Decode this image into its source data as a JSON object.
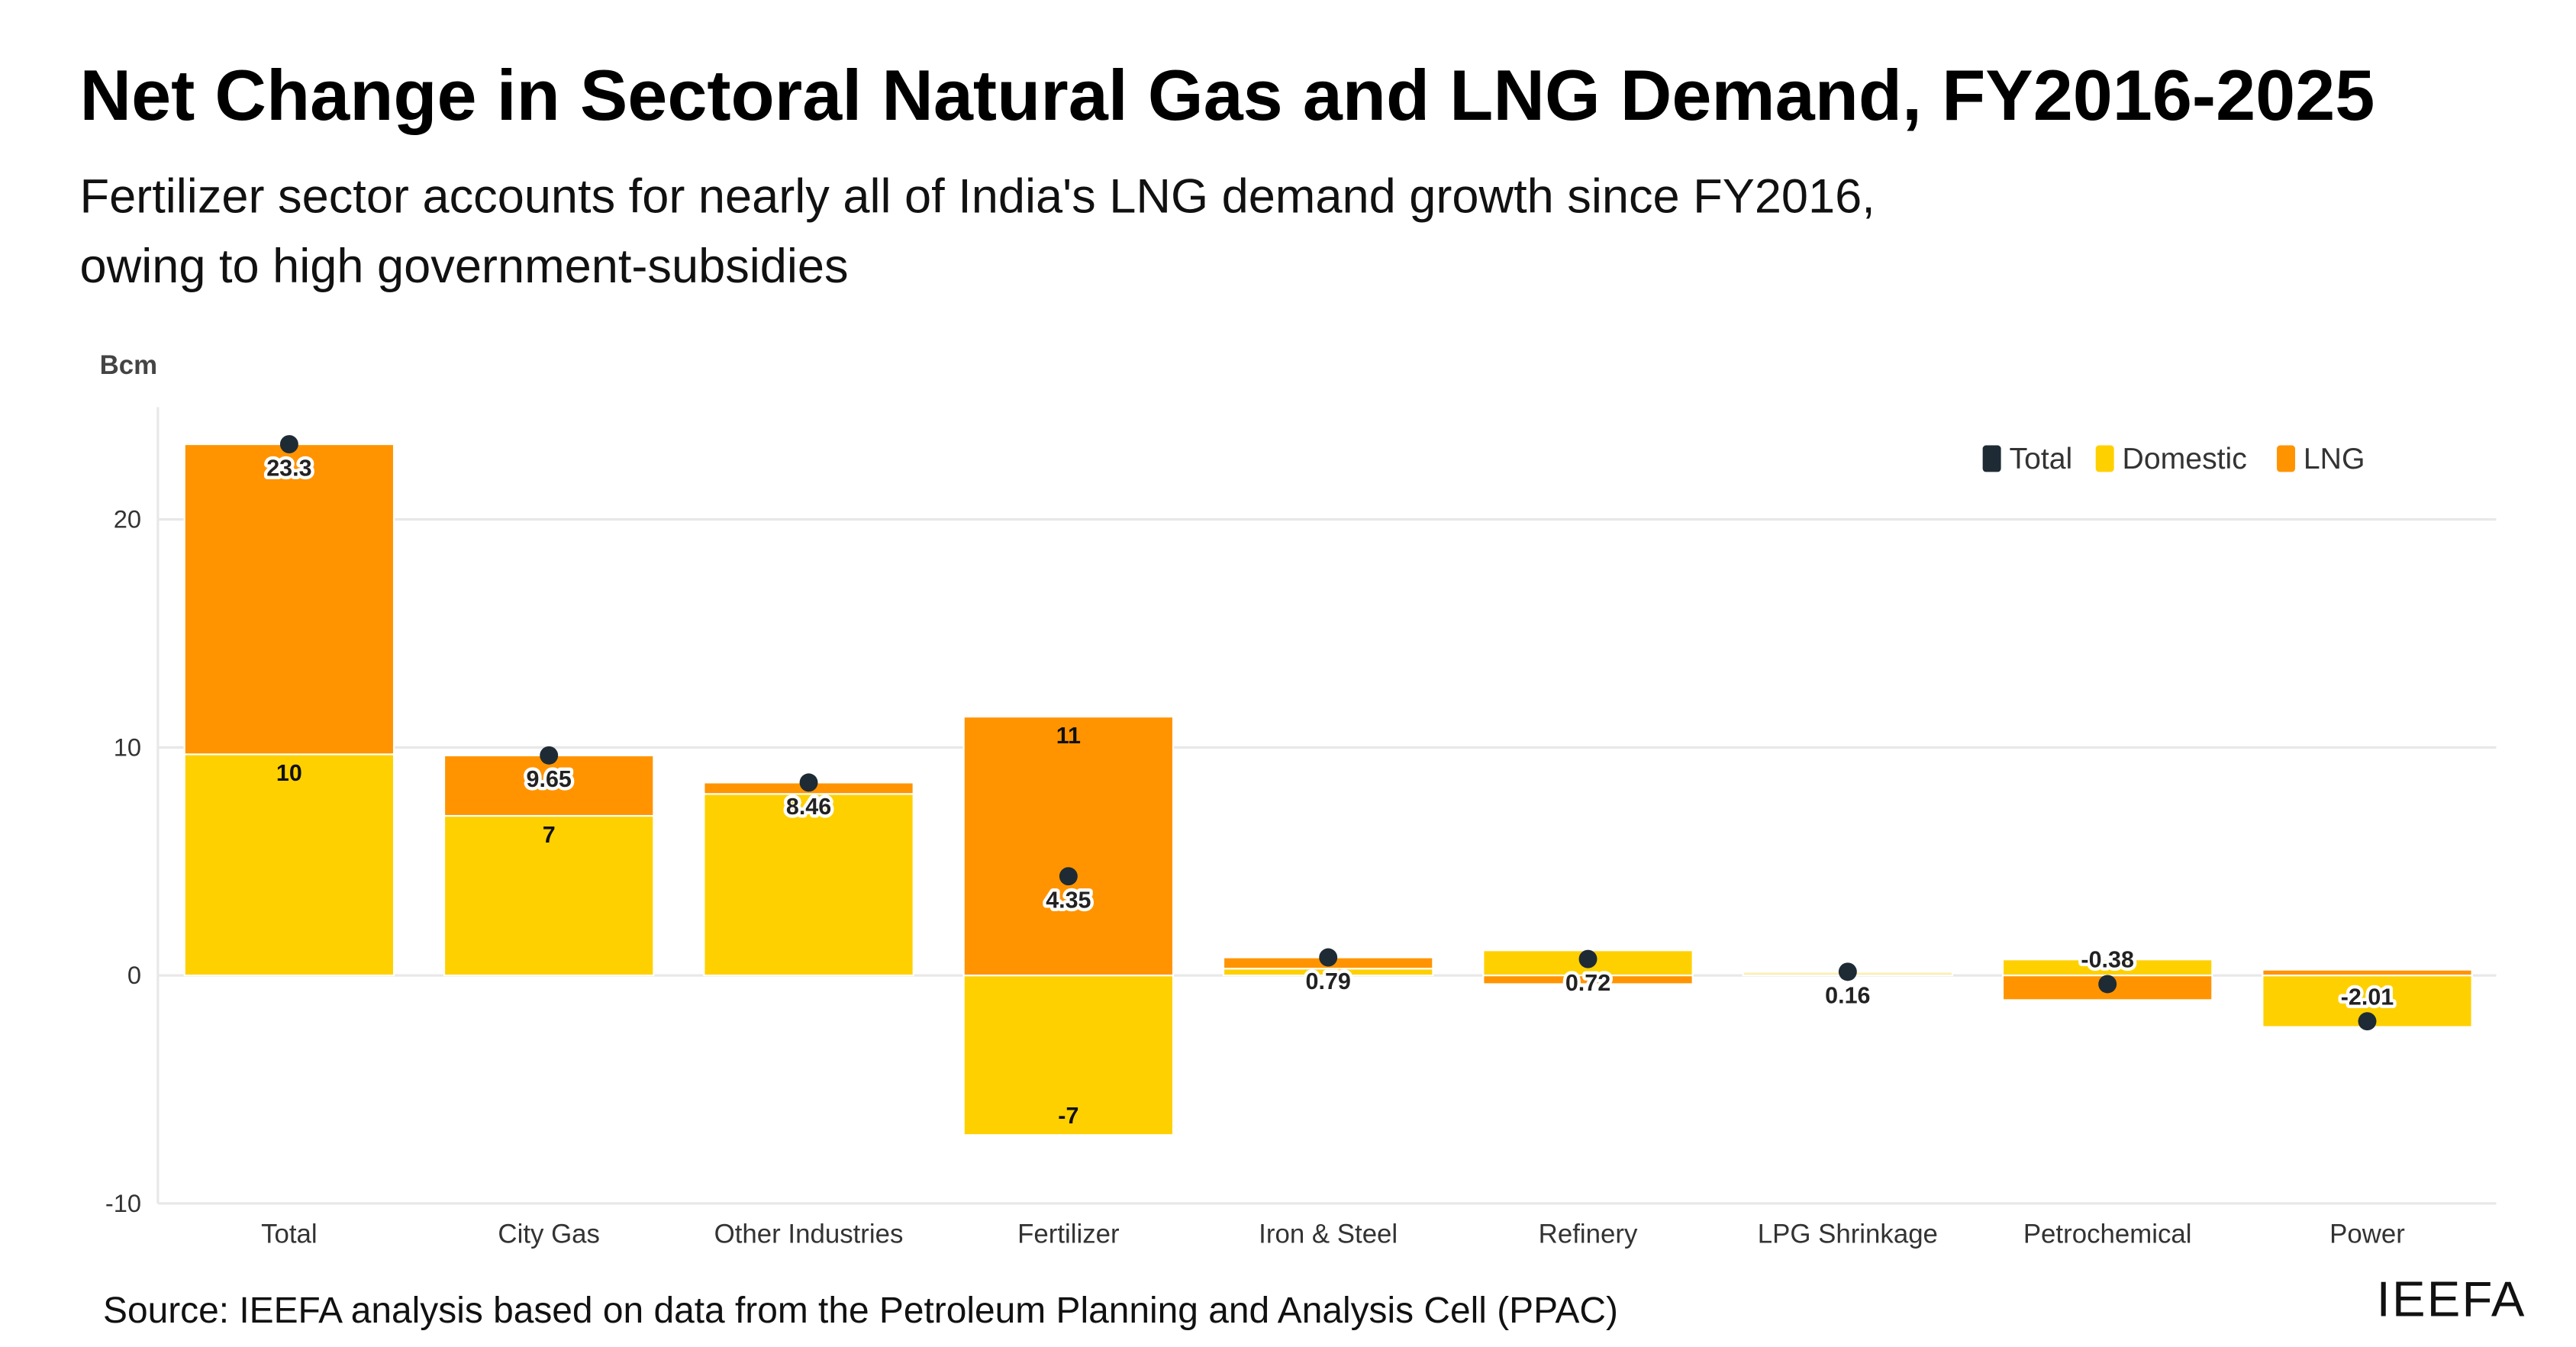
{
  "header": {
    "title": "Net Change in Sectoral Natural Gas and LNG Demand, FY2016-2025",
    "subtitle_line1": "Fertilizer sector accounts for nearly all of India's LNG demand growth since FY2016,",
    "subtitle_line2": "owing to high government-subsidies"
  },
  "footer": {
    "source": "Source: IEEFA analysis based on data from the Petroleum Planning and Analysis Cell (PPAC)",
    "brand": "IEEFA"
  },
  "chart_data": {
    "type": "bar",
    "stacked": true,
    "title": "",
    "ylabel": "Bcm",
    "xlabel": "",
    "ylim": [
      -10,
      25
    ],
    "yticks": [
      -10,
      0,
      10,
      20
    ],
    "grid": true,
    "legend_position": "top-right",
    "colors": {
      "Total": "#1e2b35",
      "Domestic": "#ffd000",
      "LNG": "#ff9400",
      "grid": "#e8e8e8"
    },
    "categories": [
      "Total",
      "City Gas",
      "Other Industries",
      "Fertilizer",
      "Iron & Steel",
      "Refinery",
      "LPG Shrinkage",
      "Petrochemical",
      "Power"
    ],
    "series": [
      {
        "name": "Domestic",
        "kind": "bar",
        "values": [
          9.7,
          7.0,
          7.96,
          -7.0,
          0.3,
          1.1,
          0.16,
          0.7,
          -2.26
        ]
      },
      {
        "name": "LNG",
        "kind": "bar",
        "values": [
          13.6,
          2.65,
          0.5,
          11.35,
          0.49,
          -0.38,
          0.0,
          -1.08,
          0.25
        ]
      },
      {
        "name": "Total",
        "kind": "dot",
        "values": [
          23.3,
          9.65,
          8.46,
          4.35,
          0.79,
          0.72,
          0.16,
          -0.38,
          -2.01
        ]
      }
    ],
    "data_labels": {
      "Domestic": [
        "10",
        "7",
        "",
        "-7",
        "",
        "",
        "",
        "",
        ""
      ],
      "LNG": [
        "",
        "",
        "",
        "11",
        "",
        "",
        "",
        "",
        ""
      ],
      "Total": [
        "23.3",
        "9.65",
        "8.46",
        "4.35",
        "0.79",
        "0.72",
        "0.16",
        "-0.38",
        "-2.01"
      ]
    }
  }
}
